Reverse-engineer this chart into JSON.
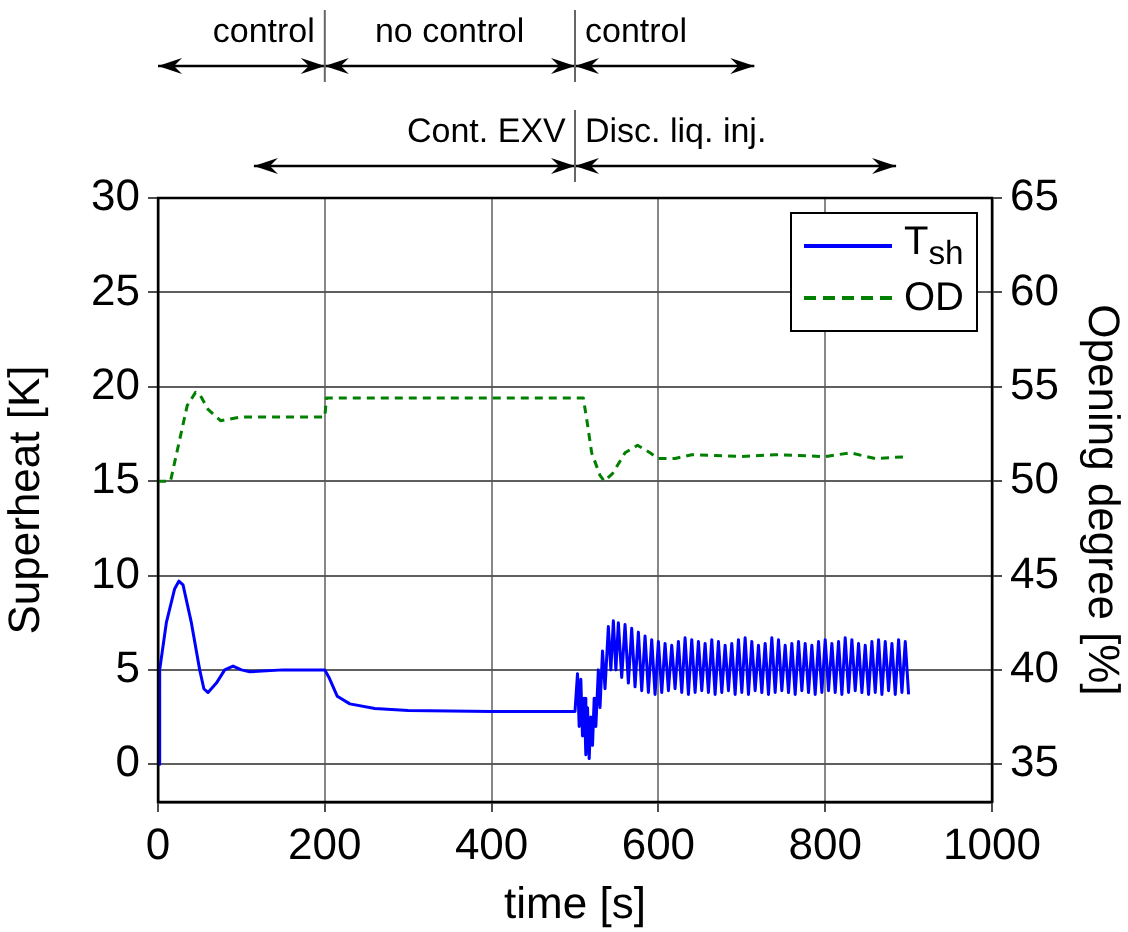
{
  "chart_data": {
    "type": "line",
    "xlabel": "time [s]",
    "ylabel": "Superheat [K]",
    "y2label": "Opening degree [%]",
    "annotations": [
      "control",
      "no control",
      "control",
      "Cont. EXV",
      "Disc. liq. inj."
    ],
    "xlim": [
      0,
      1000
    ],
    "xticks": [
      0,
      200,
      400,
      600,
      800,
      1000
    ],
    "ylim": [
      -2,
      30
    ],
    "yticks": [
      0,
      5,
      10,
      15,
      20,
      25,
      30
    ],
    "y2lim": [
      33,
      65
    ],
    "y2ticks": [
      35,
      40,
      45,
      50,
      55,
      60,
      65
    ],
    "grid": true,
    "legend": "top right",
    "marker": "none",
    "series": [
      {
        "name": "T$_{sh}$",
        "color": "#0000ff",
        "line_style": "solid",
        "x": [
          0,
          2,
          10,
          20,
          25,
          30,
          40,
          50,
          55,
          60,
          70,
          80,
          90,
          100,
          110,
          150,
          200,
          205,
          215,
          230,
          260,
          300,
          400,
          500,
          503,
          505,
          507,
          509,
          511,
          513,
          515,
          517,
          519,
          521,
          523,
          525,
          528,
          530,
          533,
          536,
          540,
          543,
          546,
          549,
          552,
          556,
          560,
          564,
          568,
          572,
          576,
          580,
          584,
          588,
          592,
          596,
          600,
          604,
          608,
          612,
          616,
          620,
          624,
          628,
          632,
          636,
          640,
          644,
          648,
          652,
          656,
          660,
          664,
          668,
          672,
          676,
          680,
          684,
          688,
          692,
          696,
          700,
          704,
          708,
          712,
          716,
          720,
          724,
          728,
          732,
          736,
          740,
          744,
          748,
          752,
          756,
          760,
          764,
          768,
          772,
          776,
          780,
          784,
          788,
          792,
          796,
          800,
          804,
          808,
          812,
          816,
          820,
          824,
          828,
          832,
          836,
          840,
          844,
          848,
          852,
          856,
          860,
          864,
          868,
          872,
          876,
          880,
          884,
          888,
          892,
          896,
          900
        ],
        "values": [
          0,
          5,
          7.5,
          9.3,
          9.7,
          9.5,
          7.5,
          5,
          4,
          3.8,
          4.3,
          5,
          5.2,
          5,
          4.9,
          5,
          5,
          4.6,
          3.6,
          3.2,
          2.95,
          2.85,
          2.8,
          2.8,
          4.8,
          2,
          4.5,
          1.5,
          3.5,
          0.5,
          3,
          0.3,
          2.5,
          1,
          3.5,
          2,
          5,
          3,
          6,
          4,
          7.3,
          5,
          7.6,
          5,
          7.5,
          4.6,
          7.4,
          4.3,
          7.2,
          4.1,
          7,
          3.9,
          6.8,
          3.8,
          6.6,
          3.7,
          6.5,
          3.8,
          6.4,
          3.9,
          6.3,
          4,
          6.5,
          3.8,
          6.7,
          3.7,
          6.6,
          3.8,
          6.5,
          3.9,
          6.4,
          3.8,
          6.6,
          3.7,
          6.5,
          3.8,
          6.3,
          3.9,
          6.4,
          3.7,
          6.6,
          3.8,
          6.7,
          3.7,
          6.5,
          3.9,
          6.3,
          3.8,
          6.4,
          3.7,
          6.7,
          3.8,
          6.6,
          3.9,
          6.3,
          3.8,
          6.4,
          3.7,
          6.5,
          3.9,
          6.4,
          3.8,
          6.3,
          3.7,
          6.5,
          3.8,
          6.6,
          3.9,
          6.4,
          3.8,
          6.5,
          3.7,
          6.7,
          3.8,
          6.6,
          3.9,
          6.4,
          3.8,
          6.3,
          3.7,
          6.5,
          3.8,
          6.6,
          3.7,
          6.5,
          3.9,
          6.4,
          3.7,
          6.6,
          3.8,
          6.5,
          3.7
        ]
      },
      {
        "name": "OD",
        "color": "#008000",
        "line_style": "dashed",
        "axis": "y2",
        "x": [
          0,
          15,
          25,
          35,
          45,
          50,
          60,
          75,
          100,
          200,
          202,
          500,
          510,
          515,
          520,
          530,
          535,
          545,
          560,
          575,
          590,
          600,
          620,
          640,
          700,
          740,
          800,
          830,
          860,
          900
        ],
        "values": [
          50,
          50,
          52,
          54,
          54.7,
          54.6,
          53.8,
          53.2,
          53.4,
          53.4,
          54.4,
          54.4,
          54.4,
          53,
          51.5,
          50.3,
          50,
          50.4,
          51.5,
          51.9,
          51.5,
          51.2,
          51.2,
          51.4,
          51.3,
          51.4,
          51.3,
          51.5,
          51.2,
          51.3
        ]
      }
    ]
  }
}
